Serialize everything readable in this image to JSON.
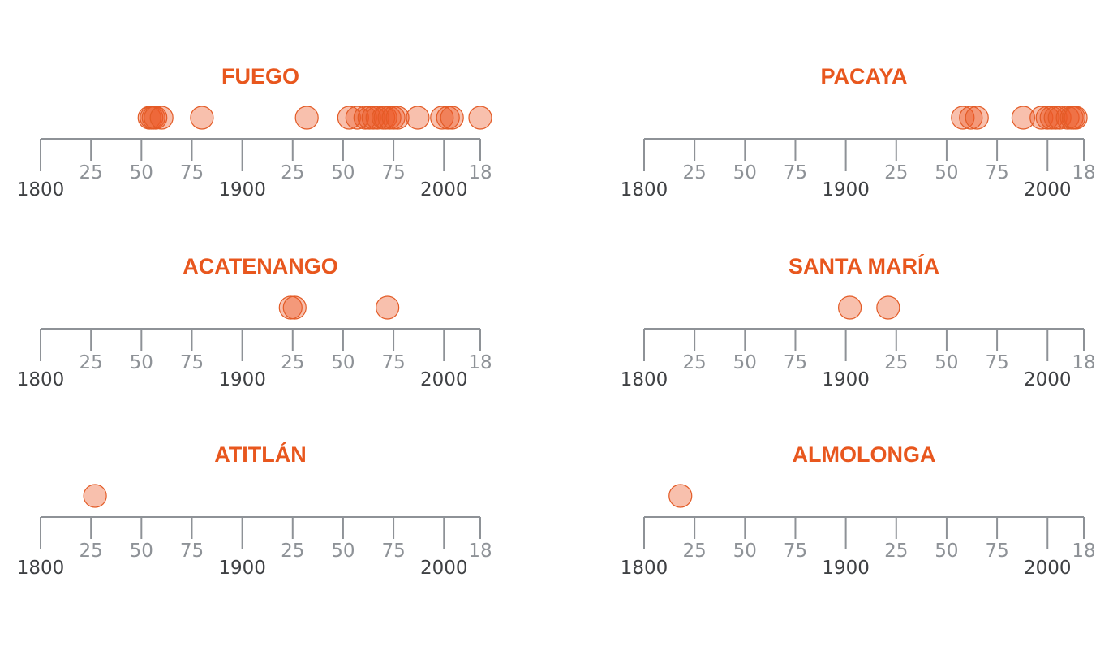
{
  "colors": {
    "title": "#e8571e",
    "dot_fill": "rgba(236,90,40,0.38)",
    "dot_stroke": "#e35b26",
    "axis": "#8e9297",
    "major_tick_text": "#3f4144"
  },
  "chart_data": [
    {
      "type": "scatter",
      "title": "FUEGO",
      "xlim": [
        1800,
        2018
      ],
      "tick_labels": [
        "1800",
        "25",
        "50",
        "75",
        "1900",
        "25",
        "50",
        "75",
        "2000",
        "18"
      ],
      "major_ticks": [
        1800,
        1900,
        2000
      ],
      "x": [
        1854,
        1855,
        1856,
        1857,
        1860,
        1880,
        1932,
        1953,
        1957,
        1961,
        1963,
        1965,
        1967,
        1970,
        1971,
        1973,
        1975,
        1977,
        1987,
        1999,
        2002,
        2004,
        2018
      ]
    },
    {
      "type": "scatter",
      "title": "PACAYA",
      "xlim": [
        1800,
        2018
      ],
      "tick_labels": [
        "1800",
        "25",
        "50",
        "75",
        "1900",
        "25",
        "50",
        "75",
        "2000",
        "18"
      ],
      "major_ticks": [
        1800,
        1900,
        2000
      ],
      "x": [
        1958,
        1962,
        1965,
        1988,
        1997,
        2000,
        2002,
        2004,
        2006,
        2010,
        2012,
        2013,
        2014
      ]
    },
    {
      "type": "scatter",
      "title": "ACATENANGO",
      "xlim": [
        1800,
        2018
      ],
      "tick_labels": [
        "1800",
        "25",
        "50",
        "75",
        "1900",
        "25",
        "50",
        "75",
        "2000",
        "18"
      ],
      "major_ticks": [
        1800,
        1900,
        2000
      ],
      "x": [
        1924,
        1926,
        1972
      ]
    },
    {
      "type": "scatter",
      "title": "SANTA MARÍA",
      "xlim": [
        1800,
        2018
      ],
      "tick_labels": [
        "1800",
        "25",
        "50",
        "75",
        "1900",
        "25",
        "50",
        "75",
        "2000",
        "18"
      ],
      "major_ticks": [
        1800,
        1900,
        2000
      ],
      "x": [
        1902,
        1921
      ]
    },
    {
      "type": "scatter",
      "title": "ATITLÁN",
      "xlim": [
        1800,
        2018
      ],
      "tick_labels": [
        "1800",
        "25",
        "50",
        "75",
        "1900",
        "25",
        "50",
        "75",
        "2000",
        "18"
      ],
      "major_ticks": [
        1800,
        1900,
        2000
      ],
      "x": [
        1827
      ]
    },
    {
      "type": "scatter",
      "title": "ALMOLONGA",
      "xlim": [
        1800,
        2018
      ],
      "tick_labels": [
        "1800",
        "25",
        "50",
        "75",
        "1900",
        "25",
        "50",
        "75",
        "2000",
        "18"
      ],
      "major_ticks": [
        1800,
        1900,
        2000
      ],
      "x": [
        1818
      ]
    }
  ]
}
